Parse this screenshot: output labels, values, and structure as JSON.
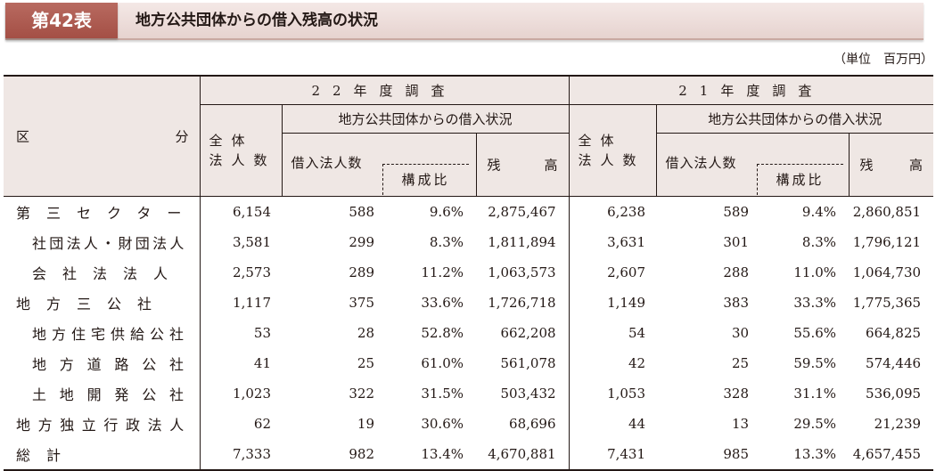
{
  "header": {
    "badge": "第42表",
    "title": "地方公共団体からの借入残高の状況"
  },
  "unit": "（単位　百万円）",
  "table": {
    "category_label_left": "区",
    "category_label_right": "分",
    "year_a": "22年度調査",
    "year_b": "21年度調査",
    "total_corp_line1": "全体",
    "total_corp_line2": "法人数",
    "borrow_status": "地方公共団体からの借入状況",
    "borrowing_corps": "借入法人数",
    "ratio": "構成比",
    "balance_left": "残",
    "balance_right": "高",
    "rows": [
      {
        "label": "第三セクター",
        "indent": false,
        "a_total": "6,154",
        "a_borrow": "588",
        "a_ratio": "9.6%",
        "a_balance": "2,875,467",
        "b_total": "6,238",
        "b_borrow": "589",
        "b_ratio": "9.4%",
        "b_balance": "2,860,851"
      },
      {
        "label": "社団法人・財団法人",
        "indent": true,
        "a_total": "3,581",
        "a_borrow": "299",
        "a_ratio": "8.3%",
        "a_balance": "1,811,894",
        "b_total": "3,631",
        "b_borrow": "301",
        "b_ratio": "8.3%",
        "b_balance": "1,796,121"
      },
      {
        "label": "会社法法人",
        "indent": true,
        "a_total": "2,573",
        "a_borrow": "289",
        "a_ratio": "11.2%",
        "a_balance": "1,063,573",
        "b_total": "2,607",
        "b_borrow": "288",
        "b_ratio": "11.0%",
        "b_balance": "1,064,730"
      },
      {
        "label": "地方三公社",
        "indent": false,
        "a_total": "1,117",
        "a_borrow": "375",
        "a_ratio": "33.6%",
        "a_balance": "1,726,718",
        "b_total": "1,149",
        "b_borrow": "383",
        "b_ratio": "33.3%",
        "b_balance": "1,775,365"
      },
      {
        "label": "地方住宅供給公社",
        "indent": true,
        "a_total": "53",
        "a_borrow": "28",
        "a_ratio": "52.8%",
        "a_balance": "662,208",
        "b_total": "54",
        "b_borrow": "30",
        "b_ratio": "55.6%",
        "b_balance": "664,825"
      },
      {
        "label": "地方道路公社",
        "indent": true,
        "a_total": "41",
        "a_borrow": "25",
        "a_ratio": "61.0%",
        "a_balance": "561,078",
        "b_total": "42",
        "b_borrow": "25",
        "b_ratio": "59.5%",
        "b_balance": "574,446"
      },
      {
        "label": "土地開発公社",
        "indent": true,
        "a_total": "1,023",
        "a_borrow": "322",
        "a_ratio": "31.5%",
        "a_balance": "503,432",
        "b_total": "1,053",
        "b_borrow": "328",
        "b_ratio": "31.1%",
        "b_balance": "536,095"
      },
      {
        "label": "地方独立行政法人",
        "indent": false,
        "a_total": "62",
        "a_borrow": "19",
        "a_ratio": "30.6%",
        "a_balance": "68,696",
        "b_total": "44",
        "b_borrow": "13",
        "b_ratio": "29.5%",
        "b_balance": "21,239"
      },
      {
        "label": "総計",
        "indent": false,
        "a_total": "7,333",
        "a_borrow": "982",
        "a_ratio": "13.4%",
        "a_balance": "4,670,881",
        "b_total": "7,431",
        "b_borrow": "985",
        "b_ratio": "13.3%",
        "b_balance": "4,657,455"
      }
    ]
  }
}
